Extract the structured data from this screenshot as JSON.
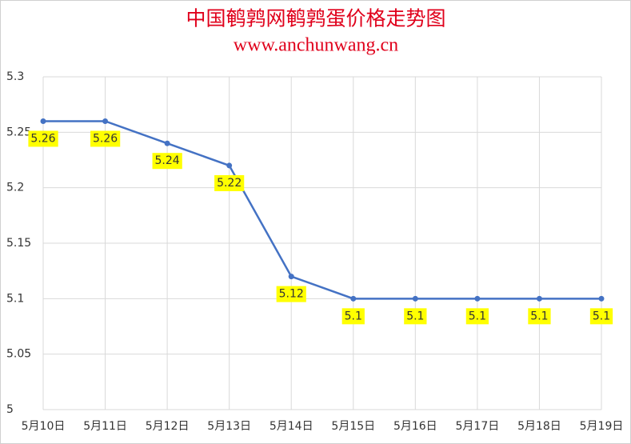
{
  "chart_data": {
    "type": "line",
    "title": "中国鹌鹑网鹌鹑蛋价格走势图",
    "subtitle": "www.anchunwang.cn",
    "categories": [
      "5月10日",
      "5月11日",
      "5月12日",
      "5月13日",
      "5月14日",
      "5月15日",
      "5月16日",
      "5月17日",
      "5月18日",
      "5月19日"
    ],
    "values": [
      5.26,
      5.26,
      5.24,
      5.22,
      5.12,
      5.1,
      5.1,
      5.1,
      5.1,
      5.1
    ],
    "color": "#4472c4",
    "label_color": "#ffff00",
    "ylim": [
      5,
      5.3
    ],
    "yticks": [
      5,
      5.05,
      5.1,
      5.15,
      5.2,
      5.25,
      5.3
    ],
    "grid": true
  }
}
